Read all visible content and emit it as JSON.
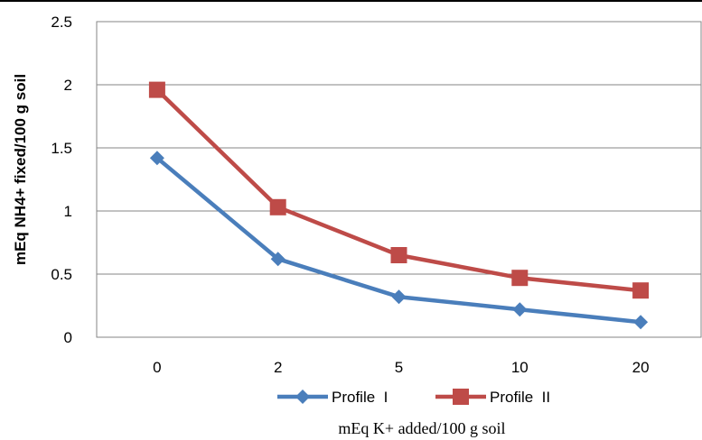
{
  "chart_data": {
    "type": "line",
    "categories": [
      "0",
      "2",
      "5",
      "10",
      "20"
    ],
    "series": [
      {
        "name": "Profile  I",
        "values": [
          1.42,
          0.62,
          0.32,
          0.22,
          0.12
        ],
        "color": "#4A7EBB",
        "marker": "diamond"
      },
      {
        "name": "Profile  II",
        "values": [
          1.96,
          1.03,
          0.65,
          0.47,
          0.37
        ],
        "color": "#BE4B48",
        "marker": "square"
      }
    ],
    "yticks": [
      "0",
      "0.5",
      "1",
      "1.5",
      "2",
      "2.5"
    ],
    "ylim": [
      0,
      2.5
    ],
    "ylabel": "mEq NH4+ fixed/100 g soil",
    "xlabel": "mEq K+ added/100 g soil",
    "grid": true,
    "legend_position": "bottom"
  }
}
